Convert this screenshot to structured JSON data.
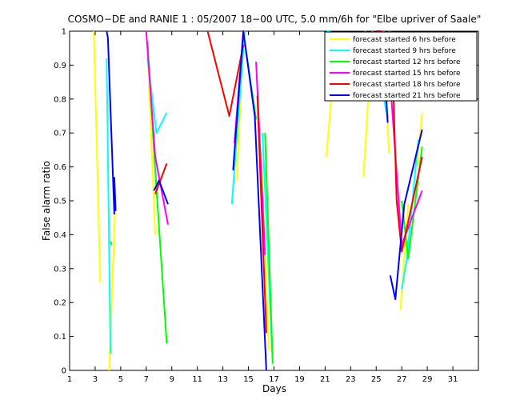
{
  "chart_data": {
    "type": "line",
    "title": "COSMO−DE and RANIE 1 : 05/2007 18−00 UTC, 5.0 mm/6h for \"Elbe upriver of Saale\"",
    "xlabel": "Days",
    "ylabel": "False alarm ratio",
    "xlim": [
      1,
      33
    ],
    "ylim": [
      0,
      1
    ],
    "xticks": [
      1,
      3,
      5,
      7,
      9,
      11,
      13,
      15,
      17,
      19,
      21,
      23,
      25,
      27,
      29,
      31
    ],
    "yticks": [
      0,
      0.1,
      0.2,
      0.3,
      0.4,
      0.5,
      0.6,
      0.7,
      0.8,
      0.9,
      1
    ],
    "ytick_labels": [
      "0",
      "0.1",
      "0.2",
      "0.3",
      "0.4",
      "0.5",
      "0.6",
      "0.7",
      "0.8",
      "0.9",
      "1"
    ],
    "legend_position": "top-right",
    "grid": false,
    "series": [
      {
        "name": "forecast started 6 hrs before",
        "color": "#ffff00",
        "segments": [
          [
            [
              2.9,
              1.0
            ],
            [
              3.4,
              0.26
            ]
          ],
          [
            [
              4.1,
              0.0
            ],
            [
              4.6,
              0.52
            ]
          ],
          [
            [
              7.1,
              0.95
            ],
            [
              7.7,
              0.4
            ]
          ],
          [
            [
              14.1,
              0.56
            ],
            [
              14.6,
              1.0
            ]
          ],
          [
            [
              16.0,
              0.64
            ],
            [
              16.6,
              0.06
            ]
          ],
          [
            [
              21.1,
              0.63
            ],
            [
              21.6,
              0.86
            ]
          ],
          [
            [
              24.0,
              0.57
            ],
            [
              24.7,
              1.0
            ]
          ],
          [
            [
              25.6,
              1.0
            ],
            [
              26.0,
              0.64
            ]
          ],
          [
            [
              26.9,
              0.18
            ],
            [
              27.5,
              0.49
            ]
          ],
          [
            [
              28.2,
              0.6
            ],
            [
              28.6,
              0.76
            ]
          ]
        ]
      },
      {
        "name": "forecast started 9 hrs before",
        "color": "#00ffff",
        "segments": [
          [
            [
              3.9,
              0.92
            ],
            [
              4.2,
              0.05
            ]
          ],
          [
            [
              7.1,
              0.92
            ],
            [
              7.8,
              0.7
            ],
            [
              8.6,
              0.76
            ]
          ],
          [
            [
              13.7,
              0.49
            ],
            [
              14.7,
              1.0
            ]
          ],
          [
            [
              16.1,
              0.7
            ],
            [
              16.9,
              0.02
            ]
          ],
          [
            [
              21.1,
              1.0
            ],
            [
              21.4,
              1.0
            ]
          ],
          [
            [
              24.1,
              1.0
            ],
            [
              24.9,
              0.96
            ],
            [
              25.8,
              0.76
            ]
          ],
          [
            [
              27.0,
              0.24
            ],
            [
              27.4,
              0.33
            ],
            [
              28.3,
              0.68
            ]
          ]
        ]
      },
      {
        "name": "forecast started 12 hrs before",
        "color": "#00ff00",
        "segments": [
          [
            [
              4.2,
              0.38
            ],
            [
              4.3,
              0.37
            ]
          ],
          [
            [
              7.1,
              0.97
            ],
            [
              7.6,
              0.65
            ],
            [
              8.6,
              0.08
            ]
          ],
          [
            [
              14.7,
              0.97
            ],
            [
              15.6,
              0.74
            ]
          ],
          [
            [
              16.3,
              0.7
            ],
            [
              16.9,
              0.02
            ]
          ],
          [
            [
              26.0,
              1.0
            ],
            [
              26.1,
              0.98
            ]
          ],
          [
            [
              27.0,
              0.5
            ],
            [
              27.5,
              0.33
            ],
            [
              28.6,
              0.66
            ]
          ]
        ]
      },
      {
        "name": "forecast started 15 hrs before",
        "color": "#ff00ff",
        "segments": [
          [
            [
              7.0,
              1.0
            ],
            [
              7.7,
              0.63
            ],
            [
              8.7,
              0.43
            ]
          ],
          [
            [
              13.9,
              0.67
            ],
            [
              14.6,
              1.0
            ]
          ],
          [
            [
              15.6,
              0.91
            ],
            [
              16.3,
              0.34
            ]
          ],
          [
            [
              25.2,
              1.0
            ],
            [
              26.1,
              0.85
            ],
            [
              27.0,
              0.37
            ],
            [
              28.6,
              0.53
            ]
          ]
        ]
      },
      {
        "name": "forecast started 18 hrs before",
        "color": "#ff0000",
        "segments": [
          [
            [
              11.8,
              1.0
            ],
            [
              13.5,
              0.75
            ],
            [
              14.6,
              0.96
            ]
          ],
          [
            [
              15.7,
              0.81
            ],
            [
              16.4,
              0.11
            ]
          ],
          [
            [
              25.0,
              1.0
            ],
            [
              25.4,
              1.0
            ]
          ],
          [
            [
              26.2,
              1.0
            ],
            [
              26.6,
              0.5
            ],
            [
              27.0,
              0.35
            ],
            [
              28.6,
              0.63
            ]
          ],
          [
            [
              7.7,
              0.52
            ],
            [
              8.6,
              0.61
            ]
          ]
        ]
      },
      {
        "name": "forecast started 21 hrs before",
        "color": "#0000ff",
        "segments": [
          [
            [
              3.9,
              1.0
            ],
            [
              4.0,
              0.98
            ],
            [
              4.5,
              0.46
            ]
          ],
          [
            [
              4.5,
              0.57
            ],
            [
              4.6,
              0.47
            ]
          ],
          [
            [
              7.6,
              0.53
            ],
            [
              8.0,
              0.56
            ],
            [
              8.7,
              0.49
            ]
          ],
          [
            [
              13.8,
              0.59
            ],
            [
              14.6,
              1.0
            ],
            [
              15.5,
              0.75
            ],
            [
              16.4,
              0.0
            ]
          ],
          [
            [
              24.8,
              0.98
            ],
            [
              25.2,
              1.0
            ],
            [
              25.5,
              0.99
            ],
            [
              25.9,
              0.73
            ]
          ],
          [
            [
              26.1,
              0.28
            ],
            [
              26.5,
              0.21
            ],
            [
              27.2,
              0.49
            ],
            [
              28.6,
              0.71
            ]
          ]
        ]
      }
    ]
  }
}
